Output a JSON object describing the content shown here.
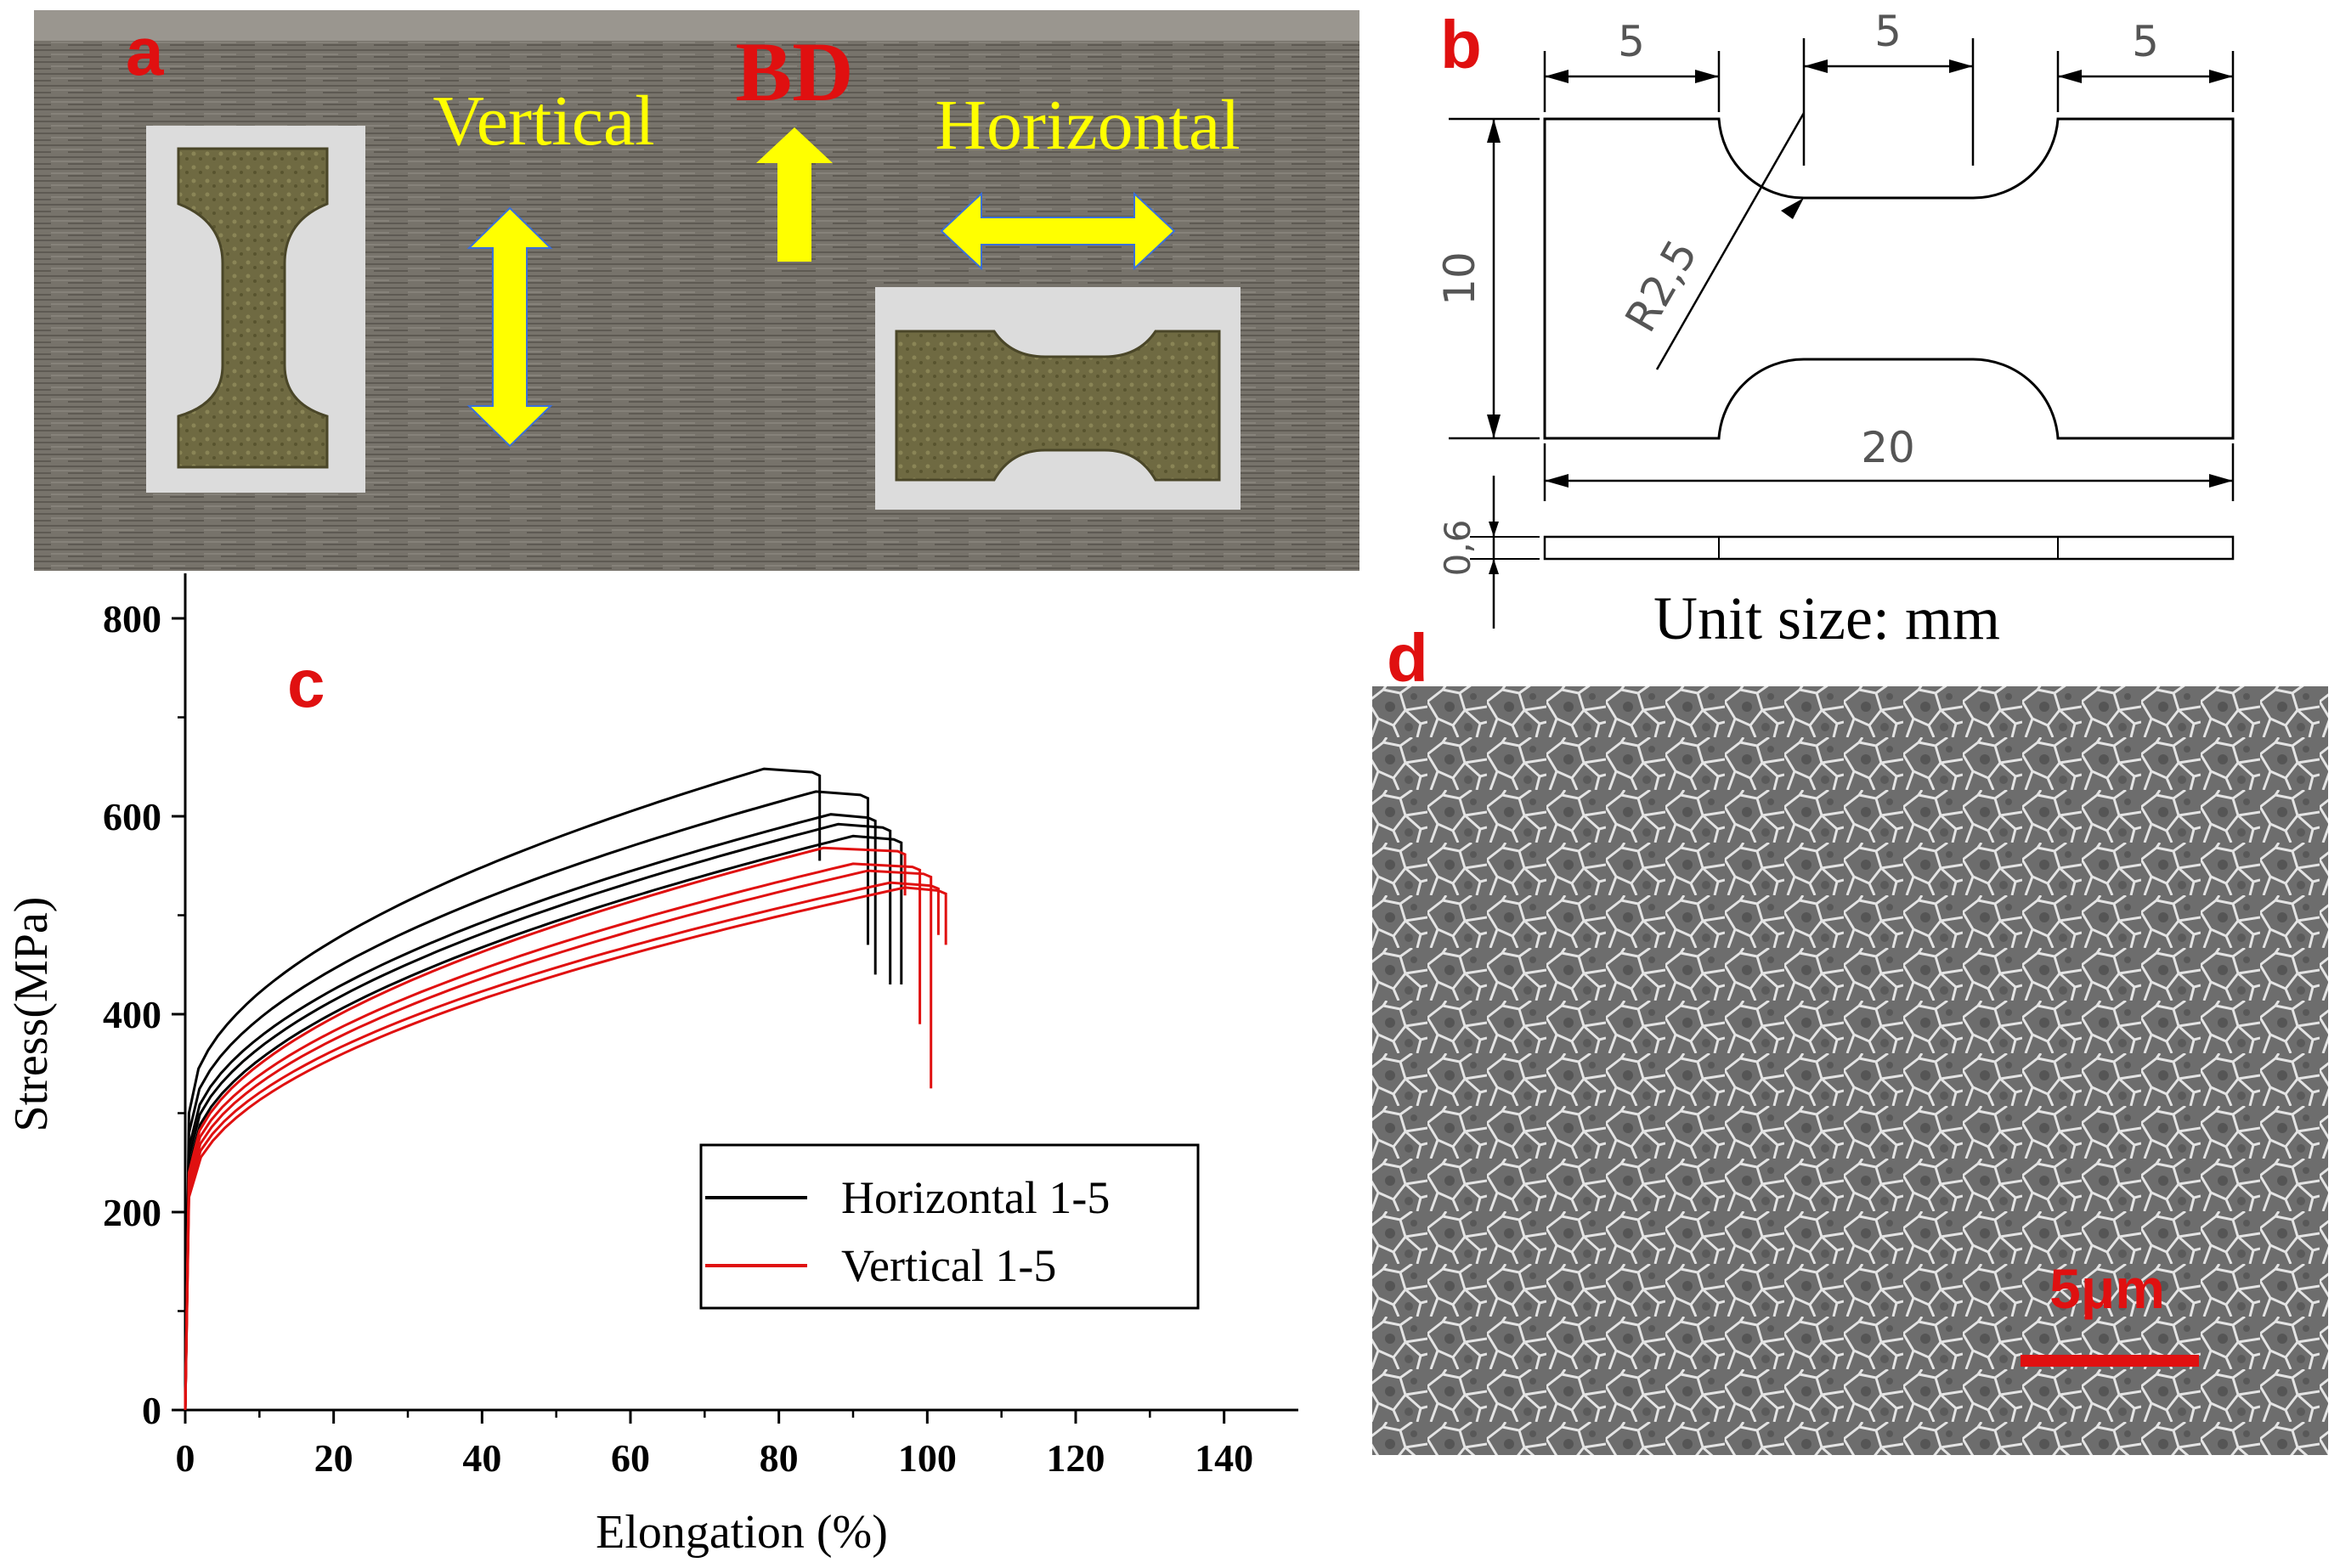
{
  "panels": {
    "a": {
      "letter": "a",
      "bd_label": "BD",
      "vertical_label": "Vertical",
      "horizontal_label": "Horizontal",
      "colors": {
        "letter": "#e01010",
        "arrow": "#ffff00",
        "plate": "#77736b"
      }
    },
    "b": {
      "letter": "b",
      "dim_top_left": "5",
      "dim_top_mid": "5",
      "dim_top_right": "5",
      "dim_height": "10",
      "dim_radius": "R2,5",
      "dim_length": "20",
      "dim_thickness": "0,6",
      "unit_caption": "Unit size: mm"
    },
    "c": {
      "letter": "c"
    },
    "d": {
      "letter": "d",
      "scale_bar_label": "5μm",
      "colors": {
        "scale_bar": "#e01010"
      }
    }
  },
  "chart_data": {
    "type": "line",
    "title": "",
    "xlabel": "Elongation (%)",
    "ylabel": "Stress(MPa)",
    "xlim": [
      0,
      150
    ],
    "ylim": [
      0,
      800
    ],
    "xticks": [
      0,
      20,
      40,
      60,
      80,
      100,
      120,
      140
    ],
    "yticks": [
      0,
      200,
      400,
      600,
      800
    ],
    "grid": false,
    "legend": {
      "position": "bottom-right",
      "entries": [
        {
          "label": "Horizontal 1-5",
          "color": "#000000"
        },
        {
          "label": "Vertical 1-5",
          "color": "#e01010"
        }
      ]
    },
    "series": [
      {
        "group": "Horizontal 1-5",
        "color": "#000000",
        "yield": 300,
        "uts": 648,
        "peak_x": 78,
        "end_x": 85.5,
        "final": 555
      },
      {
        "group": "Horizontal 1-5",
        "color": "#000000",
        "yield": 280,
        "uts": 625,
        "peak_x": 85,
        "end_x": 92,
        "final": 470
      },
      {
        "group": "Horizontal 1-5",
        "color": "#000000",
        "yield": 265,
        "uts": 602,
        "peak_x": 87,
        "end_x": 93,
        "final": 440
      },
      {
        "group": "Horizontal 1-5",
        "color": "#000000",
        "yield": 255,
        "uts": 592,
        "peak_x": 88,
        "end_x": 95,
        "final": 430
      },
      {
        "group": "Horizontal 1-5",
        "color": "#000000",
        "yield": 245,
        "uts": 580,
        "peak_x": 90,
        "end_x": 96.5,
        "final": 430
      },
      {
        "group": "Vertical 1-5",
        "color": "#e01010",
        "yield": 240,
        "uts": 568,
        "peak_x": 86,
        "end_x": 97,
        "final": 520
      },
      {
        "group": "Vertical 1-5",
        "color": "#e01010",
        "yield": 235,
        "uts": 552,
        "peak_x": 90,
        "end_x": 99,
        "final": 390
      },
      {
        "group": "Vertical 1-5",
        "color": "#e01010",
        "yield": 228,
        "uts": 545,
        "peak_x": 92,
        "end_x": 100.5,
        "final": 325
      },
      {
        "group": "Vertical 1-5",
        "color": "#e01010",
        "yield": 222,
        "uts": 533,
        "peak_x": 95,
        "end_x": 101.5,
        "final": 480
      },
      {
        "group": "Vertical 1-5",
        "color": "#e01010",
        "yield": 215,
        "uts": 528,
        "peak_x": 97,
        "end_x": 102.5,
        "final": 470
      }
    ]
  }
}
